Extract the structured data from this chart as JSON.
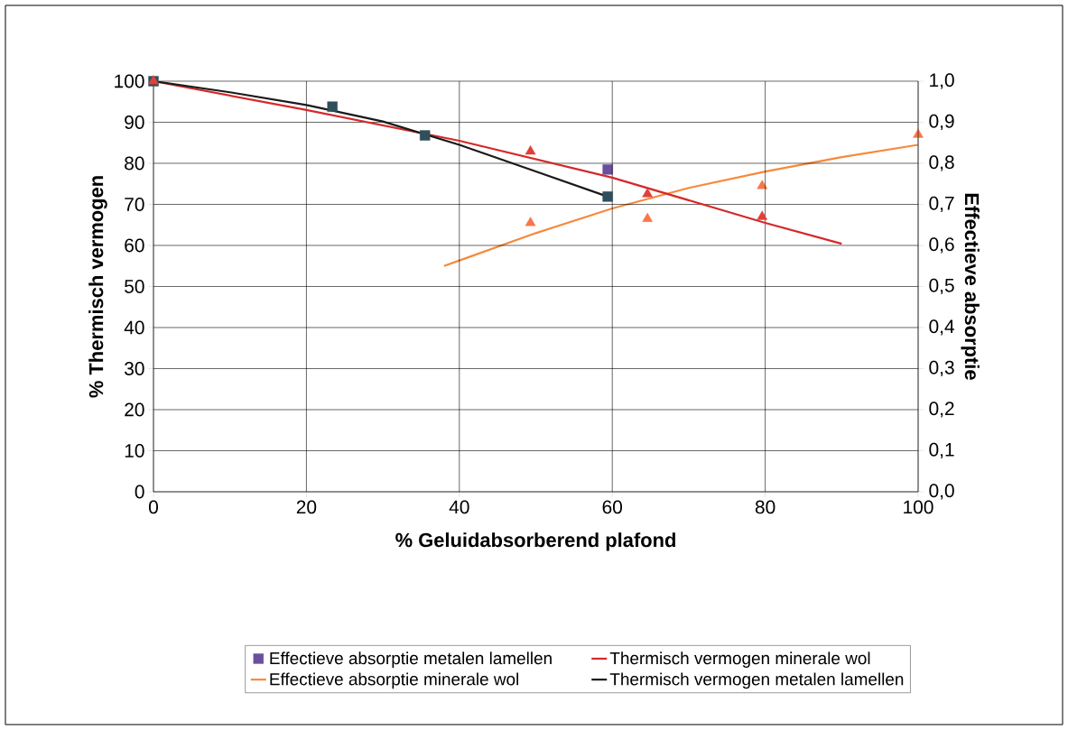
{
  "chart_data": {
    "type": "line",
    "xlabel": "% Geluidabsorberend plafond",
    "ylabel": "% Thermisch vermogen",
    "y2label": "Effectieve absorptie",
    "xlim": [
      0,
      100
    ],
    "xticks": [
      0,
      20,
      40,
      60,
      80,
      100
    ],
    "ylim": [
      0,
      100
    ],
    "yticks": [
      0,
      10,
      20,
      30,
      40,
      50,
      60,
      70,
      80,
      90,
      100
    ],
    "y2lim": [
      0,
      1
    ],
    "y2ticks": [
      {
        "value": 0,
        "label": "0,0"
      },
      {
        "value": 0.1,
        "label": "0,1"
      },
      {
        "value": 0.2,
        "label": "0,2"
      },
      {
        "value": 0.3,
        "label": "0,3"
      },
      {
        "value": 0.4,
        "label": "0,4"
      },
      {
        "value": 0.5,
        "label": "0,5"
      },
      {
        "value": 0.6,
        "label": "0,6"
      },
      {
        "value": 0.7,
        "label": "0,7"
      },
      {
        "value": 0.8,
        "label": "0,8"
      },
      {
        "value": 0.9,
        "label": "0,9"
      },
      {
        "value": 1.0,
        "label": "1,0"
      }
    ],
    "grid": true,
    "legend": "bottom",
    "series": [
      {
        "name": "Effectieve absorptie metalen lamellen",
        "type": "scatter",
        "axis": "y2",
        "marker": "square",
        "color": "#6a4f9e",
        "x": [
          59.4
        ],
        "values": [
          0.785
        ]
      },
      {
        "name": "Thermisch vermogen minerale wol",
        "marker": "none",
        "color": "#d42a2a",
        "x": [
          0,
          20,
          40,
          60,
          80,
          90
        ],
        "values": [
          100,
          93,
          85.5,
          76.5,
          65.5,
          60.4
        ]
      },
      {
        "name": "Effectieve absorptie minerale wol",
        "axis": "y2",
        "marker": "none",
        "color": "#f7893a",
        "x": [
          38,
          50,
          60,
          70,
          80,
          90,
          100
        ],
        "values": [
          0.55,
          0.63,
          0.69,
          0.74,
          0.78,
          0.815,
          0.845
        ]
      },
      {
        "name": "Thermisch vermogen metalen lamellen",
        "marker": "none",
        "color": "#1a1a1a",
        "x": [
          0,
          10,
          20,
          30,
          40,
          50,
          59.4
        ],
        "values": [
          100,
          97.3,
          94.2,
          90.2,
          84.5,
          78,
          71.9
        ]
      },
      {
        "type": "scatter",
        "marker": "square",
        "color": "#2f4f5a",
        "x": [
          0,
          23.4,
          35.5,
          59.4
        ],
        "values": [
          100,
          93.8,
          86.8,
          71.9
        ]
      },
      {
        "type": "scatter",
        "marker": "triangle",
        "color": "#e0403a",
        "x": [
          0,
          49.3,
          64.6,
          79.6
        ],
        "values": [
          100,
          82.9,
          72.5,
          67.0
        ]
      },
      {
        "type": "scatter",
        "axis": "y2",
        "marker": "triangle",
        "color": "#f7774a",
        "x": [
          49.3,
          64.6,
          79.6,
          100
        ],
        "values": [
          0.655,
          0.665,
          0.745,
          0.87
        ]
      }
    ]
  }
}
